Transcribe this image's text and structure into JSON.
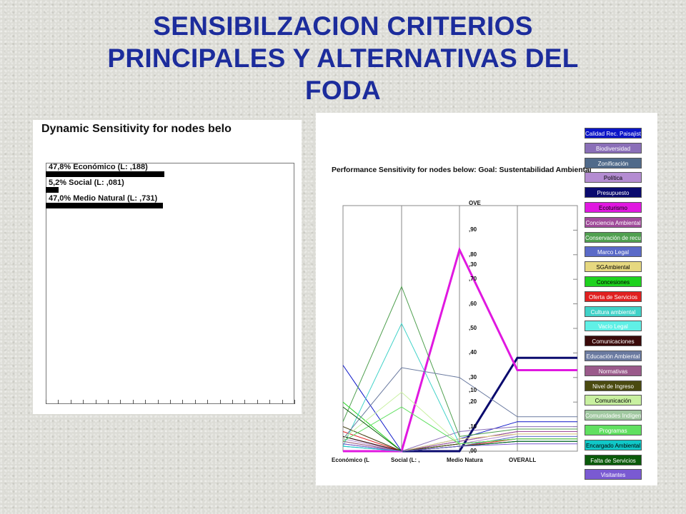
{
  "page": {
    "title_line1": "SENSIBILZACION CRITERIOS",
    "title_line2": "PRINCIPALES Y ALTERNATIVAS DEL",
    "title_line3": "FODA"
  },
  "chart_data": [
    {
      "type": "bar",
      "title": "Dynamic Sensitivity for nodes belo",
      "categories": [
        "Económico (L: ,188)",
        "Social (L: ,081)",
        "Medio Natural (L: ,731)"
      ],
      "labels": [
        "47,8% Económico (L: ,188)",
        "5,2% Social (L: ,081)",
        "47,0% Medio Natural (L: ,731)"
      ],
      "values": [
        47.8,
        5.2,
        47.0
      ],
      "xlim": [
        0,
        100
      ],
      "grid": false
    },
    {
      "type": "line",
      "title": "Performance Sensitivity for nodes below: Goal: Sustentabilidad Ambiental",
      "x": [
        "Económico (L",
        "Social (L: ,",
        "Medio Natura",
        "OVERALL"
      ],
      "ylim": [
        0,
        1
      ],
      "scale_labels": [
        ",90",
        ",80",
        ",70",
        ",60",
        ",50",
        ",40",
        ",30",
        ",20",
        ",10",
        ",00"
      ],
      "extra_scale_labels": [
        "OVE",
        ",30",
        ",10"
      ],
      "series": [
        {
          "name": "Calidad Rec. Paisajisti",
          "values": [
            0.35,
            0.0,
            0.05,
            0.12
          ],
          "color": "#0a14c8"
        },
        {
          "name": "Biodiversidad",
          "values": [
            0.1,
            0.0,
            0.08,
            0.1
          ],
          "color": "#8a6fb8"
        },
        {
          "name": "Zonificación",
          "values": [
            0.06,
            0.0,
            0.04,
            0.08
          ],
          "color": "#506a8a"
        },
        {
          "name": "Política",
          "values": [
            0.05,
            0.0,
            0.03,
            0.07
          ],
          "color": "#b48cd2"
        },
        {
          "name": "Presupuesto",
          "values": [
            0.0,
            0.0,
            0.0,
            0.38
          ],
          "color": "#0a0a6e"
        },
        {
          "name": "Ecoturismo",
          "values": [
            0.0,
            0.0,
            0.82,
            0.33
          ],
          "color": "#e018e0"
        },
        {
          "name": "Conciencia Ambiental",
          "values": [
            0.02,
            0.0,
            0.04,
            0.08
          ],
          "color": "#a04a9a"
        },
        {
          "name": "Conservación de recur",
          "values": [
            0.12,
            0.67,
            0.06,
            0.09
          ],
          "color": "#50a050"
        },
        {
          "name": "Marco Legal",
          "values": [
            0.03,
            0.0,
            0.02,
            0.06
          ],
          "color": "#5a6ac8"
        },
        {
          "name": "SGAmbiental",
          "values": [
            0.04,
            0.0,
            0.05,
            0.07
          ],
          "color": "#e6d880"
        },
        {
          "name": "Concesiones",
          "values": [
            0.2,
            0.0,
            0.03,
            0.05
          ],
          "color": "#1ed21e"
        },
        {
          "name": "Oferta de Servicios",
          "values": [
            0.08,
            0.0,
            0.02,
            0.05
          ],
          "color": "#e02020"
        },
        {
          "name": "Cultura ambiental",
          "values": [
            0.02,
            0.52,
            0.03,
            0.05
          ],
          "color": "#40d2c8"
        },
        {
          "name": "Vacío Legal",
          "values": [
            0.02,
            0.0,
            0.02,
            0.04
          ],
          "color": "#60f0e6"
        },
        {
          "name": "Comunicaciones",
          "values": [
            0.06,
            0.0,
            0.03,
            0.05
          ],
          "color": "#3a0a0a"
        },
        {
          "name": "Educación Ambiental",
          "values": [
            0.05,
            0.34,
            0.3,
            0.14
          ],
          "color": "#6a7aa0"
        },
        {
          "name": "Normativas",
          "values": [
            0.04,
            0.0,
            0.02,
            0.04
          ],
          "color": "#9a5a8a"
        },
        {
          "name": "Nivel de Ingreso",
          "values": [
            0.1,
            0.0,
            0.03,
            0.05
          ],
          "color": "#4a4a10"
        },
        {
          "name": "Comunicación",
          "values": [
            0.05,
            0.24,
            0.03,
            0.05
          ],
          "color": "#c8f0a0"
        },
        {
          "name": "Comunidades Indígena",
          "values": [
            0.03,
            0.0,
            0.02,
            0.04
          ],
          "color": "#a0c8a0"
        },
        {
          "name": "Programas",
          "values": [
            0.04,
            0.18,
            0.03,
            0.05
          ],
          "color": "#60e060"
        },
        {
          "name": "Encargado Ambiental",
          "values": [
            0.02,
            0.0,
            0.02,
            0.04
          ],
          "color": "#10c8c8"
        },
        {
          "name": "Falta de Servicios",
          "values": [
            0.18,
            0.0,
            0.02,
            0.04
          ],
          "color": "#0a5a0a"
        },
        {
          "name": "Visitantes",
          "values": [
            0.03,
            0.0,
            0.02,
            0.03
          ],
          "color": "#7a5ad2"
        }
      ]
    }
  ],
  "legend_text_colors": {
    "Calidad Rec. Paisajisti": "#ffffff",
    "Biodiversidad": "#ffffff",
    "Zonificación": "#ffffff",
    "Política": "#000000",
    "Presupuesto": "#ffffff",
    "Ecoturismo": "#000000",
    "Conciencia Ambiental": "#ffffff",
    "Conservación de recur": "#ffffff",
    "Marco Legal": "#ffffff",
    "SGAmbiental": "#000000",
    "Concesiones": "#000000",
    "Oferta de Servicios": "#ffffff",
    "Cultura ambiental": "#ffffff",
    "Vacío Legal": "#ffffff",
    "Comunicaciones": "#ffffff",
    "Educación Ambiental": "#ffffff",
    "Normativas": "#ffffff",
    "Nivel de Ingreso": "#ffffff",
    "Comunicación": "#000000",
    "Comunidades Indígena": "#ffffff",
    "Programas": "#ffffff",
    "Encargado Ambiental": "#000000",
    "Falta de Servicios": "#ffffff",
    "Visitantes": "#ffffff"
  }
}
